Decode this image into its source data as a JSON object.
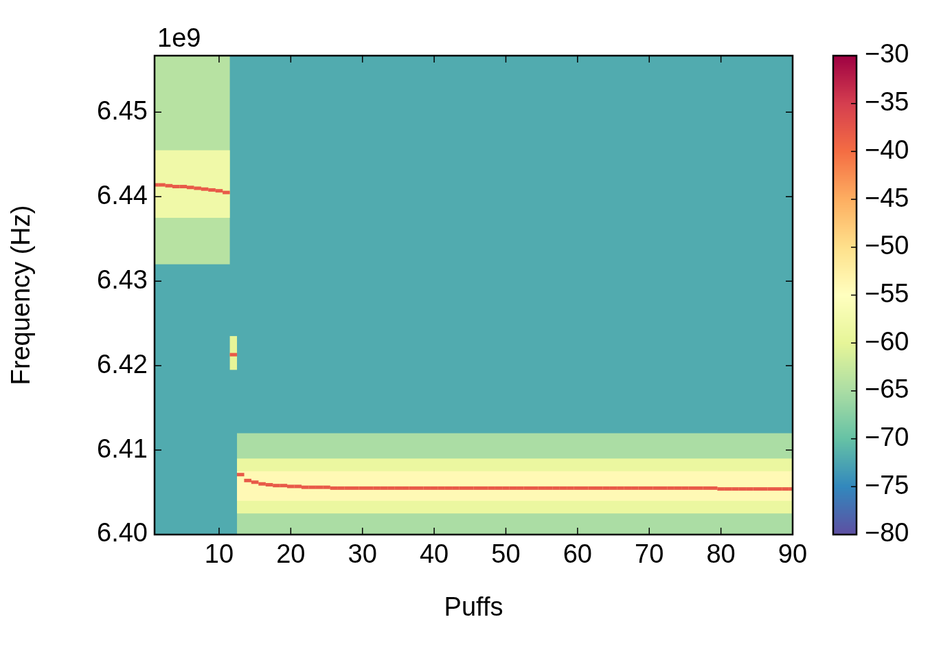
{
  "chart_data": {
    "type": "heatmap",
    "x_label": "Puffs",
    "y_label": "Frequency (Hz)",
    "annotations": [
      "1e9"
    ],
    "grid": false,
    "xlim": [
      1,
      90
    ],
    "xticks": [
      10,
      20,
      30,
      40,
      50,
      60,
      70,
      80,
      90
    ],
    "ylim": [
      6400000000,
      6456700000
    ],
    "yticks": [
      {
        "value": 6400000000,
        "label": "6.40"
      },
      {
        "value": 6410000000,
        "label": "6.41"
      },
      {
        "value": 6420000000,
        "label": "6.42"
      },
      {
        "value": 6430000000,
        "label": "6.43"
      },
      {
        "value": 6440000000,
        "label": "6.44"
      },
      {
        "value": 6450000000,
        "label": "6.45"
      }
    ],
    "cells": [
      {
        "x": [
          1,
          90
        ],
        "y": [
          6400000000,
          6456700000
        ],
        "value": -72
      },
      {
        "x": [
          1,
          11.5
        ],
        "y": [
          6432000000,
          6456700000
        ],
        "value": -64
      },
      {
        "x": [
          1,
          11.5
        ],
        "y": [
          6437500000,
          6445500000
        ],
        "value": -58
      },
      {
        "x": [
          11.5,
          12.5
        ],
        "y": [
          6419500000,
          6423500000
        ],
        "value": -60
      },
      {
        "x": [
          12.5,
          90
        ],
        "y": [
          6400000000,
          6412000000
        ],
        "value": -65
      },
      {
        "x": [
          12.5,
          90
        ],
        "y": [
          6402500000,
          6409000000
        ],
        "value": -59
      },
      {
        "x": [
          12.5,
          90
        ],
        "y": [
          6404000000,
          6407500000
        ],
        "value": -54
      }
    ],
    "x": [
      1,
      2,
      3,
      4,
      5,
      6,
      7,
      8,
      9,
      10,
      11,
      12,
      13,
      14,
      15,
      16,
      17,
      18,
      19,
      20,
      21,
      22,
      23,
      24,
      25,
      26,
      27,
      28,
      29,
      30,
      31,
      32,
      33,
      34,
      35,
      36,
      37,
      38,
      39,
      40,
      41,
      42,
      43,
      44,
      45,
      46,
      47,
      48,
      49,
      50,
      51,
      52,
      53,
      54,
      55,
      56,
      57,
      58,
      59,
      60,
      61,
      62,
      63,
      64,
      65,
      66,
      67,
      68,
      69,
      70,
      71,
      72,
      73,
      74,
      75,
      76,
      77,
      78,
      79,
      80,
      81,
      82,
      83,
      84,
      85,
      86,
      87,
      88,
      89,
      90
    ],
    "values": [
      6441400000,
      6441400000,
      6441300000,
      6441200000,
      6441200000,
      6441100000,
      6441000000,
      6440900000,
      6440800000,
      6440700000,
      6440500000,
      6421300000,
      6407100000,
      6406400000,
      6406200000,
      6406000000,
      6405900000,
      6405800000,
      6405800000,
      6405700000,
      6405700000,
      6405600000,
      6405600000,
      6405600000,
      6405600000,
      6405500000,
      6405500000,
      6405500000,
      6405500000,
      6405500000,
      6405500000,
      6405500000,
      6405500000,
      6405500000,
      6405500000,
      6405500000,
      6405500000,
      6405500000,
      6405500000,
      6405500000,
      6405500000,
      6405500000,
      6405500000,
      6405500000,
      6405500000,
      6405500000,
      6405500000,
      6405500000,
      6405500000,
      6405500000,
      6405500000,
      6405500000,
      6405500000,
      6405500000,
      6405500000,
      6405500000,
      6405500000,
      6405500000,
      6405500000,
      6405500000,
      6405500000,
      6405500000,
      6405500000,
      6405500000,
      6405500000,
      6405500000,
      6405500000,
      6405500000,
      6405500000,
      6405500000,
      6405500000,
      6405500000,
      6405500000,
      6405500000,
      6405500000,
      6405500000,
      6405500000,
      6405500000,
      6405500000,
      6405400000,
      6405400000,
      6405400000,
      6405400000,
      6405400000,
      6405400000,
      6405400000,
      6405400000,
      6405400000,
      6405400000,
      6405400000
    ],
    "resonance_level": -38,
    "colorbar_lim": [
      -80,
      -30
    ],
    "colorbar_ticks": [
      {
        "value": -80,
        "label": "−80"
      },
      {
        "value": -75,
        "label": "−75"
      },
      {
        "value": -70,
        "label": "−70"
      },
      {
        "value": -65,
        "label": "−65"
      },
      {
        "value": -60,
        "label": "−60"
      },
      {
        "value": -55,
        "label": "−55"
      },
      {
        "value": -50,
        "label": "−50"
      },
      {
        "value": -45,
        "label": "−45"
      },
      {
        "value": -40,
        "label": "−40"
      },
      {
        "value": -35,
        "label": "−35"
      },
      {
        "value": -30,
        "label": "−30"
      }
    ]
  }
}
